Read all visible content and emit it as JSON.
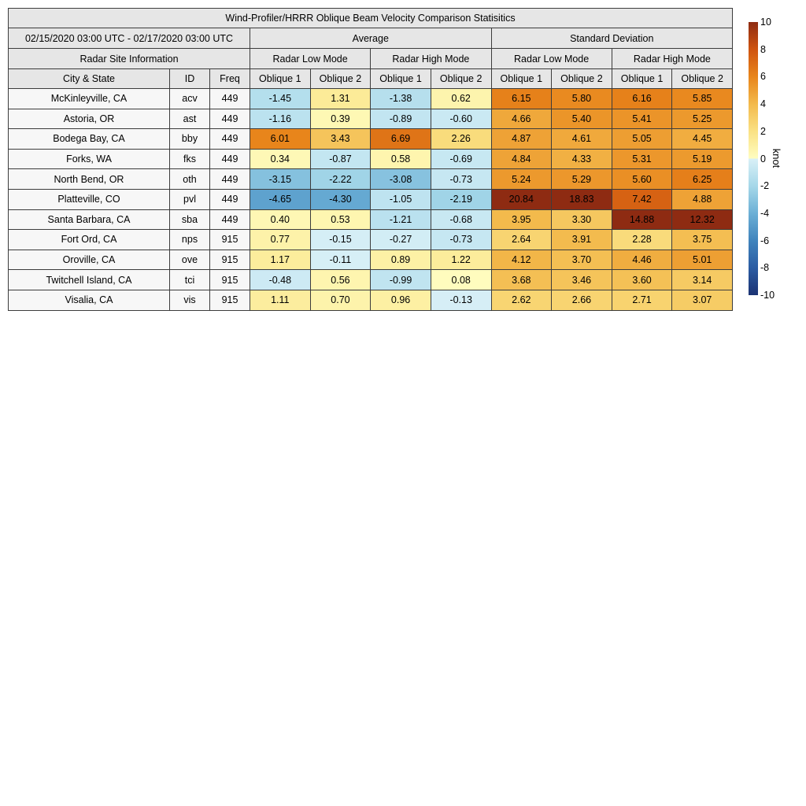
{
  "chart_data": {
    "type": "table",
    "title": "Wind-Profiler/HRRR Oblique Beam Velocity Comparison Statisitics",
    "date_range": "02/15/2020 03:00 UTC - 02/17/2020 03:00 UTC",
    "headers": {
      "average": "Average",
      "std": "Standard Deviation",
      "site_info": "Radar Site Information",
      "low_mode": "Radar Low Mode",
      "high_mode": "Radar High Mode",
      "city": "City & State",
      "id": "ID",
      "freq": "Freq",
      "oblique1": "Oblique 1",
      "oblique2": "Oblique 2"
    },
    "value_columns": [
      "Average Radar Low Mode Oblique 1",
      "Average Radar Low Mode Oblique 2",
      "Average Radar High Mode Oblique 1",
      "Average Radar High Mode Oblique 2",
      "Standard Deviation Radar Low Mode Oblique 1",
      "Standard Deviation Radar Low Mode Oblique 2",
      "Standard Deviation Radar High Mode Oblique 1",
      "Standard Deviation Radar High Mode Oblique 2"
    ],
    "rows": [
      {
        "city": "McKinleyville, CA",
        "id": "acv",
        "freq": "449",
        "values": [
          -1.45,
          1.31,
          -1.38,
          0.62,
          6.15,
          5.8,
          6.16,
          5.85
        ]
      },
      {
        "city": "Astoria, OR",
        "id": "ast",
        "freq": "449",
        "values": [
          -1.16,
          0.39,
          -0.89,
          -0.6,
          4.66,
          5.4,
          5.41,
          5.25
        ]
      },
      {
        "city": "Bodega Bay, CA",
        "id": "bby",
        "freq": "449",
        "values": [
          6.01,
          3.43,
          6.69,
          2.26,
          4.87,
          4.61,
          5.05,
          4.45
        ]
      },
      {
        "city": "Forks, WA",
        "id": "fks",
        "freq": "449",
        "values": [
          0.34,
          -0.87,
          0.58,
          -0.69,
          4.84,
          4.33,
          5.31,
          5.19
        ]
      },
      {
        "city": "North Bend, OR",
        "id": "oth",
        "freq": "449",
        "values": [
          -3.15,
          -2.22,
          -3.08,
          -0.73,
          5.24,
          5.29,
          5.6,
          6.25
        ]
      },
      {
        "city": "Platteville, CO",
        "id": "pvl",
        "freq": "449",
        "values": [
          -4.65,
          -4.3,
          -1.05,
          -2.19,
          20.84,
          18.83,
          7.42,
          4.88
        ]
      },
      {
        "city": "Santa Barbara, CA",
        "id": "sba",
        "freq": "449",
        "values": [
          0.4,
          0.53,
          -1.21,
          -0.68,
          3.95,
          3.3,
          14.88,
          12.32
        ]
      },
      {
        "city": "Fort Ord, CA",
        "id": "nps",
        "freq": "915",
        "values": [
          0.77,
          -0.15,
          -0.27,
          -0.73,
          2.64,
          3.91,
          2.28,
          3.75
        ]
      },
      {
        "city": "Oroville, CA",
        "id": "ove",
        "freq": "915",
        "values": [
          1.17,
          -0.11,
          0.89,
          1.22,
          4.12,
          3.7,
          4.46,
          5.01
        ]
      },
      {
        "city": "Twitchell Island, CA",
        "id": "tci",
        "freq": "915",
        "values": [
          -0.48,
          0.56,
          -0.99,
          0.08,
          3.68,
          3.46,
          3.6,
          3.14
        ]
      },
      {
        "city": "Visalia, CA",
        "id": "vis",
        "freq": "915",
        "values": [
          1.11,
          0.7,
          0.96,
          -0.13,
          2.62,
          2.66,
          2.71,
          3.07
        ]
      }
    ],
    "colorbar": {
      "label": "knot",
      "min": -10,
      "max": 10,
      "ticks": [
        10,
        8,
        6,
        4,
        2,
        0,
        -2,
        -4,
        -6,
        -8,
        -10
      ],
      "colormap_stops": [
        [
          -10,
          "#1c3373"
        ],
        [
          -8,
          "#2b5ca3"
        ],
        [
          -6,
          "#4084bd"
        ],
        [
          -4,
          "#6cb0d6"
        ],
        [
          -2,
          "#a6d8e9"
        ],
        [
          -0.001,
          "#d9f0f7"
        ],
        [
          0.001,
          "#fffdc0"
        ],
        [
          2,
          "#fae183"
        ],
        [
          4,
          "#f3b94b"
        ],
        [
          6,
          "#e8851b"
        ],
        [
          8,
          "#cf5410"
        ],
        [
          10,
          "#8e2b12"
        ]
      ]
    }
  }
}
